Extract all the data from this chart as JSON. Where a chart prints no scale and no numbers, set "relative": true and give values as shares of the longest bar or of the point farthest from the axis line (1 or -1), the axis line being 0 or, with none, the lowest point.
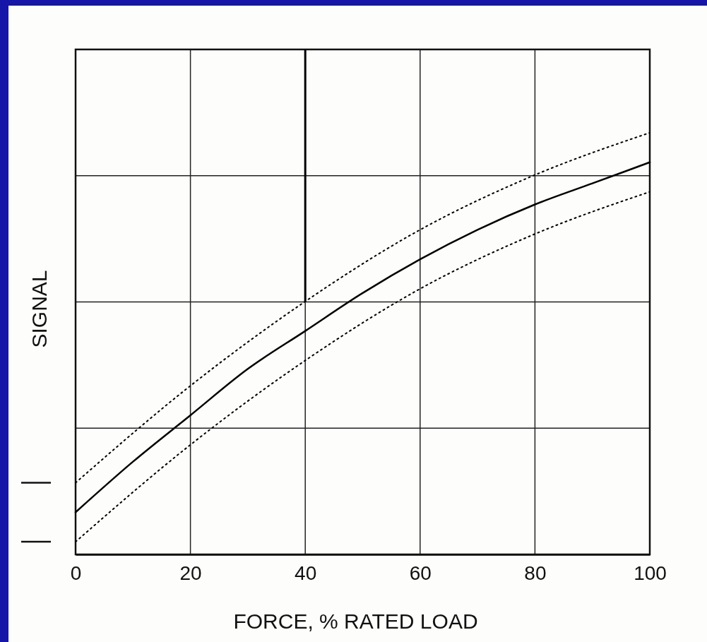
{
  "chart_data": {
    "type": "line",
    "xlabel": "FORCE, % RATED LOAD",
    "ylabel": "SIGNAL",
    "relative": true,
    "xlim": [
      0,
      100
    ],
    "xticks": [
      0,
      20,
      40,
      60,
      80,
      100
    ],
    "grid": true,
    "series": [
      {
        "color": "#000000",
        "line_style": "solid",
        "x": [
          0,
          10,
          20,
          30,
          40,
          50,
          60,
          70,
          80,
          90,
          100
        ],
        "values": [
          0.1,
          0.22,
          0.33,
          0.44,
          0.53,
          0.62,
          0.7,
          0.77,
          0.83,
          0.88,
          0.93
        ]
      },
      {
        "color": "#000000",
        "line_style": "dotted",
        "x": [
          0,
          20,
          40,
          60,
          80,
          100
        ],
        "values": [
          0.17,
          0.4,
          0.6,
          0.77,
          0.9,
          1.0
        ]
      },
      {
        "color": "#000000",
        "line_style": "dotted",
        "x": [
          0,
          20,
          40,
          60,
          80,
          100
        ],
        "values": [
          0.03,
          0.26,
          0.46,
          0.63,
          0.76,
          0.86
        ]
      }
    ],
    "ref_lines": [
      {
        "axis": "x",
        "value": 40,
        "color": "#000000"
      }
    ]
  }
}
